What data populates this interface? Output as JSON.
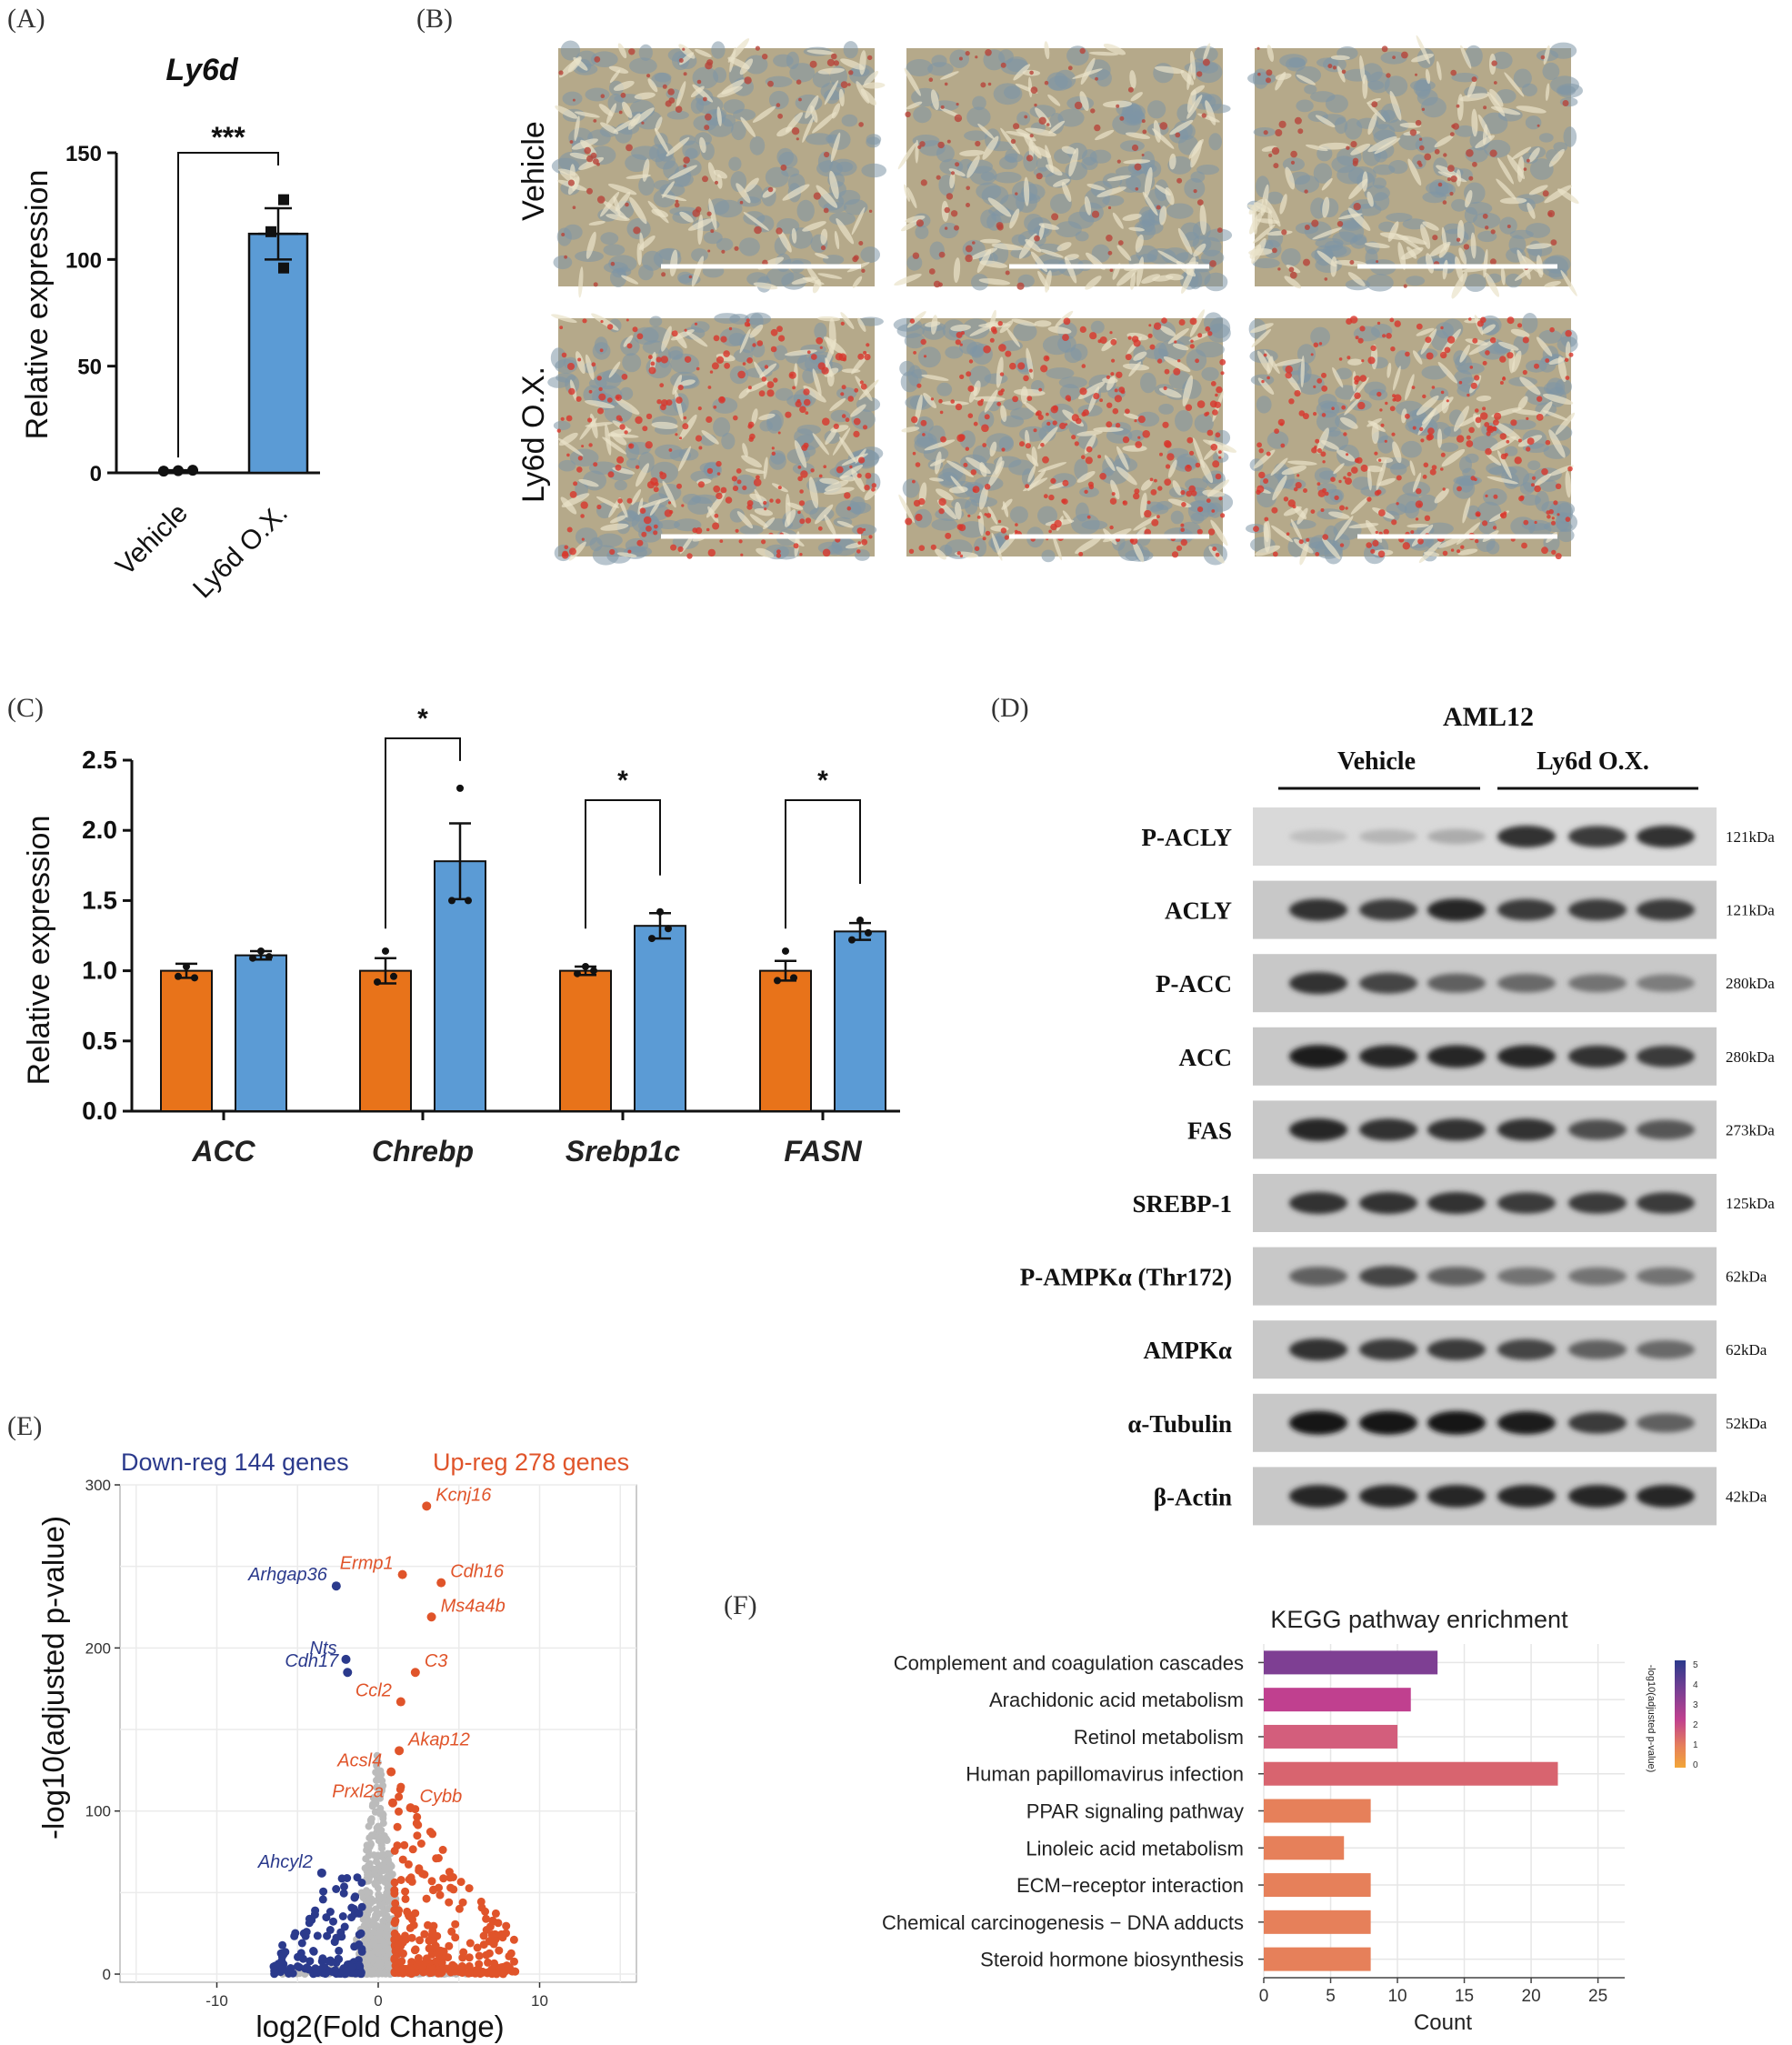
{
  "panel_labels": [
    "(A)",
    "(B)",
    "(C)",
    "(D)",
    "(E)",
    "(F)"
  ],
  "colors": {
    "vehicle": "#E8731A",
    "ly6d": "#5B9BD5",
    "down": "#2B3A8C",
    "up": "#E0542A",
    "ns": "#BBBBBB",
    "kegg_grid": "#E6E6E6"
  },
  "panel_b": {
    "row_labels": [
      "Vehicle",
      "Ly6d O.X."
    ]
  },
  "chart_data": [
    {
      "id": "A",
      "type": "bar",
      "title": "Ly6d",
      "categories": [
        "Vehicle",
        "Ly6d O.X."
      ],
      "values": [
        1,
        112
      ],
      "errors": [
        0.2,
        12
      ],
      "points": [
        [
          0.8,
          1.0,
          1.2
        ],
        [
          96,
          113,
          128
        ]
      ],
      "ylabel": "Relative expression",
      "ylim": [
        0,
        150
      ],
      "yticks": [
        0,
        50,
        100,
        150
      ],
      "significance": "***"
    },
    {
      "id": "C",
      "type": "bar",
      "categories": [
        "ACC",
        "Chrebp",
        "Srebp1c",
        "FASN"
      ],
      "series": [
        {
          "name": "Vehicle",
          "values": [
            1.0,
            1.0,
            1.0,
            1.0
          ],
          "errors": [
            0.05,
            0.09,
            0.03,
            0.07
          ],
          "points": [
            [
              0.96,
              1.03,
              0.95
            ],
            [
              0.92,
              1.14,
              0.96
            ],
            [
              0.98,
              1.03,
              1.0
            ],
            [
              0.93,
              1.14,
              0.95
            ]
          ]
        },
        {
          "name": "Ly6d O.X.",
          "values": [
            1.11,
            1.78,
            1.32,
            1.28
          ],
          "errors": [
            0.03,
            0.27,
            0.09,
            0.06
          ],
          "points": [
            [
              1.09,
              1.14,
              1.1
            ],
            [
              1.5,
              2.3,
              1.5
            ],
            [
              1.23,
              1.42,
              1.3
            ],
            [
              1.22,
              1.36,
              1.27
            ]
          ]
        }
      ],
      "ylabel": "Relative expression",
      "ylim": [
        0,
        2.5
      ],
      "yticks": [
        "0.0",
        "0.5",
        "1.0",
        "1.5",
        "2.0",
        "2.5"
      ],
      "significance": [
        "",
        "*",
        "*",
        "*"
      ]
    },
    {
      "id": "E",
      "type": "scatter",
      "xlabel": "log2(Fold Change)",
      "ylabel": "-log10(adjusted p-value)",
      "xlim": [
        -16,
        16
      ],
      "ylim": [
        -5,
        300
      ],
      "xticks": [
        -10,
        0,
        10
      ],
      "yticks": [
        0,
        100,
        200,
        300
      ],
      "legend": {
        "down": "Down-reg 144 genes",
        "up": "Up-reg 278 genes"
      },
      "labeled_genes": [
        {
          "name": "Kcnj16",
          "x": 3.0,
          "y": 287,
          "group": "up"
        },
        {
          "name": "Ermp1",
          "x": 1.5,
          "y": 245,
          "group": "up"
        },
        {
          "name": "Cdh16",
          "x": 3.9,
          "y": 240,
          "group": "up"
        },
        {
          "name": "Arhgap36",
          "x": -2.6,
          "y": 238,
          "group": "down"
        },
        {
          "name": "Ms4a4b",
          "x": 3.3,
          "y": 219,
          "group": "up"
        },
        {
          "name": "Nts",
          "x": -2.0,
          "y": 193,
          "group": "down"
        },
        {
          "name": "C3",
          "x": 2.3,
          "y": 185,
          "group": "up"
        },
        {
          "name": "Cdh17",
          "x": -1.9,
          "y": 185,
          "group": "down"
        },
        {
          "name": "Ccl2",
          "x": 1.4,
          "y": 167,
          "group": "up"
        },
        {
          "name": "Akap12",
          "x": 1.3,
          "y": 137,
          "group": "up"
        },
        {
          "name": "Acsl4",
          "x": 0.8,
          "y": 124,
          "group": "up"
        },
        {
          "name": "Prxl2a",
          "x": 0.9,
          "y": 105,
          "group": "up"
        },
        {
          "name": "Cybb",
          "x": 2.0,
          "y": 102,
          "group": "up"
        },
        {
          "name": "Ahcyl2",
          "x": -3.5,
          "y": 62,
          "group": "down"
        }
      ]
    },
    {
      "id": "F",
      "type": "bar",
      "orientation": "horizontal",
      "title": "KEGG pathway enrichment",
      "xlabel": "Count",
      "xlim": [
        0,
        27
      ],
      "xticks": [
        0,
        5,
        10,
        15,
        20,
        25
      ],
      "categories": [
        "Complement and coagulation cascades",
        "Arachidonic acid metabolism",
        "Retinol metabolism",
        "Human papillomavirus infection",
        "PPAR signaling pathway",
        "Linoleic acid metabolism",
        "ECM−receptor interaction",
        "Chemical carcinogenesis − DNA adducts",
        "Steroid hormone biosynthesis"
      ],
      "values": [
        13,
        11,
        10,
        22,
        8,
        6,
        8,
        8,
        8
      ],
      "neglog10_padj": [
        4.4,
        3.3,
        2.9,
        2.7,
        1.4,
        1.3,
        1.2,
        1.2,
        1.2
      ],
      "bar_colors": [
        "#7E3F93",
        "#C0408F",
        "#D35E7C",
        "#D8646F",
        "#E6805A",
        "#E6805A",
        "#E6805A",
        "#E6805A",
        "#E6805A"
      ],
      "colorbar": {
        "title": "-log10(adjusted p-value)",
        "ticks": [
          "5",
          "4",
          "3",
          "2",
          "1",
          "0"
        ]
      }
    },
    {
      "id": "D",
      "type": "table",
      "title": "AML12",
      "groups": [
        "Vehicle",
        "Ly6d O.X."
      ],
      "blots": [
        {
          "label": "P-ACLY",
          "kda": "121kDa",
          "intensity": [
            0.1,
            0.15,
            0.2,
            0.85,
            0.8,
            0.85
          ]
        },
        {
          "label": "ACLY",
          "kda": "121kDa",
          "intensity": [
            0.85,
            0.8,
            0.9,
            0.8,
            0.8,
            0.8
          ]
        },
        {
          "label": "P-ACC",
          "kda": "280kDa",
          "intensity": [
            0.85,
            0.75,
            0.6,
            0.55,
            0.5,
            0.45
          ]
        },
        {
          "label": "ACC",
          "kda": "280kDa",
          "intensity": [
            0.95,
            0.9,
            0.9,
            0.9,
            0.85,
            0.8
          ]
        },
        {
          "label": "FAS",
          "kda": "273kDa",
          "intensity": [
            0.9,
            0.85,
            0.85,
            0.85,
            0.7,
            0.65
          ]
        },
        {
          "label": "SREBP-1",
          "kda": "125kDa",
          "intensity": [
            0.85,
            0.85,
            0.85,
            0.8,
            0.8,
            0.8
          ]
        },
        {
          "label": "P-AMPKα (Thr172)",
          "kda": "62kDa",
          "intensity": [
            0.6,
            0.75,
            0.6,
            0.5,
            0.5,
            0.5
          ]
        },
        {
          "label": "AMPKα",
          "kda": "62kDa",
          "intensity": [
            0.85,
            0.8,
            0.8,
            0.75,
            0.6,
            0.55
          ]
        },
        {
          "label": "α-Tubulin",
          "kda": "52kDa",
          "intensity": [
            1.0,
            1.0,
            1.0,
            0.95,
            0.8,
            0.6
          ]
        },
        {
          "label": "β-Actin",
          "kda": "42kDa",
          "intensity": [
            0.9,
            0.9,
            0.9,
            0.9,
            0.9,
            0.9
          ]
        }
      ]
    }
  ]
}
